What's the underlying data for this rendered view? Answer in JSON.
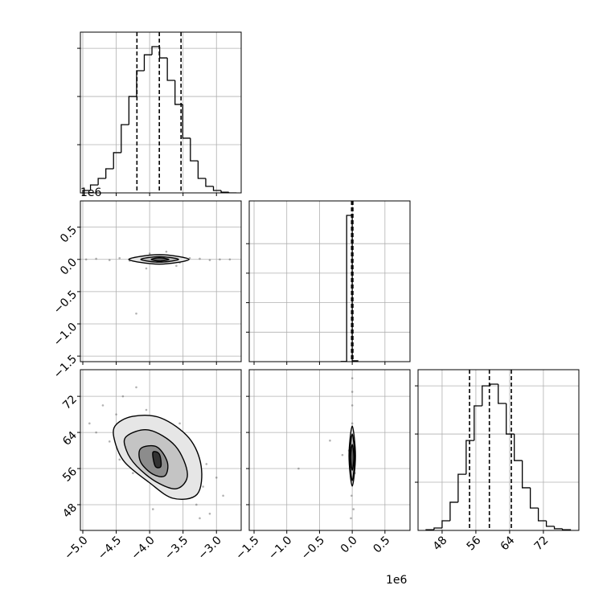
{
  "chart_data": [
    {
      "type": "hist",
      "color": "#000000",
      "bins": [
        -5.0,
        -4.885,
        -4.77,
        -4.655,
        -4.54,
        -4.425,
        -4.31,
        -4.195,
        -4.08,
        -3.965,
        -3.85,
        -3.735,
        -3.62,
        -3.505,
        -3.39,
        -3.275,
        -3.16,
        -3.045,
        -2.93,
        -2.815,
        -2.7
      ],
      "counts": [
        10,
        33,
        60,
        100,
        167,
        283,
        400,
        507,
        573,
        607,
        560,
        467,
        367,
        227,
        133,
        60,
        27,
        10,
        3,
        0
      ],
      "quantiles": [
        -4.19,
        -3.855,
        -3.53
      ],
      "xlim": [
        -5.036,
        -2.63
      ],
      "ylim": [
        0,
        667
      ],
      "xticks": [
        -5,
        -4.5,
        -4,
        -3.5,
        -3
      ],
      "yticks": [
        200,
        400,
        600
      ],
      "grid": true
    },
    {
      "type": "contour",
      "color": "#000000",
      "x": [
        -4.95,
        -4.8,
        -4.6,
        -4.45,
        -4.3,
        -4.15,
        -4.0,
        -3.85,
        -3.7,
        -3.55,
        -3.4,
        -3.25,
        -3.1,
        -2.95,
        -2.8,
        -4.2,
        -4.05,
        -3.75,
        -3.6
      ],
      "y": [
        0,
        0.01,
        -0.01,
        0.02,
        -0.02,
        0.03,
        0.09,
        -0.03,
        0.04,
        -0.05,
        0.02,
        0.01,
        -0.01,
        0,
        0,
        -0.84,
        -0.14,
        0.12,
        -0.1
      ],
      "contours": [
        {
          "fill": "#e6e6e6",
          "x": [
            -4.313,
            -3.855,
            -3.41,
            -3.855
          ],
          "y": [
            0,
            0.074,
            0,
            -0.074
          ]
        },
        {
          "fill": "#bbbbbb",
          "x": [
            -4.133,
            -3.855,
            -3.566,
            -3.855
          ],
          "y": [
            0,
            0.043,
            0,
            -0.043
          ]
        },
        {
          "fill": "#666666",
          "x": [
            -3.976,
            -3.855,
            -3.711,
            -3.855
          ],
          "y": [
            0,
            0.025,
            0,
            -0.025
          ]
        }
      ],
      "xlim": [
        -5.036,
        -2.63
      ],
      "ylim": [
        -1.586,
        0.907
      ],
      "xticks": [
        -5,
        -4.5,
        -4,
        -3.5,
        -3
      ],
      "yticks": [
        0.5,
        {
          "value": 0,
          "label": "0.0"
        },
        {
          "value": -0.5,
          "label": "−0.5"
        },
        {
          "value": -1,
          "label": "−1.0"
        },
        {
          "value": -1.5,
          "label": "−1.5"
        }
      ],
      "y_offset_label": "1e6",
      "grid": true
    },
    {
      "type": "hist",
      "color": "#000000",
      "bins": [
        -0.17,
        -0.085,
        0.0,
        0.085
      ],
      "counts": [
        5,
        4960,
        30
      ],
      "quantiles": [
        -0.01,
        0.0,
        0.01
      ],
      "xlim": [
        -1.574,
        0.883
      ],
      "ylim": [
        0,
        5450
      ],
      "xticks": [
        -1.5,
        -1,
        -0.5,
        0,
        0.5
      ],
      "yticks": [
        1000,
        2000,
        3000,
        4000
      ],
      "grid": true
    },
    {
      "type": "contour",
      "color": "#000000",
      "x": [
        -4.9,
        -4.7,
        -4.6,
        -4.5,
        -4.4,
        -4.3,
        -4.2,
        -4.1,
        -4.0,
        -3.9,
        -3.8,
        -3.7,
        -3.6,
        -3.5,
        -3.4,
        -3.3,
        -3.2,
        -3.1,
        -3.0,
        -2.9,
        -4.8,
        -4.45,
        -4.05,
        -3.75,
        -3.45,
        -3.15,
        -4.25,
        -3.95,
        -3.55,
        -3.25
      ],
      "y": [
        66,
        70,
        62,
        68,
        72,
        60,
        74,
        64,
        58,
        66,
        62,
        54,
        60,
        50,
        56,
        48,
        52,
        46,
        54,
        50,
        64,
        58,
        69,
        52,
        61,
        57,
        55,
        47,
        66,
        45
      ],
      "contours": [
        {
          "fill": "#e6e6e6",
          "x": [
            -4.518,
            -4.253,
            -3.831,
            -3.41,
            -3.229,
            -3.289,
            -3.651,
            -4.012,
            -4.373,
            -4.518
          ],
          "y": [
            65.42,
            67.56,
            67.2,
            62.76,
            56.53,
            50.31,
            49.42,
            52.98,
            57.42,
            61.87
          ]
        },
        {
          "fill": "#c4c4c4",
          "x": [
            -4.349,
            -4.012,
            -3.614,
            -3.434,
            -3.59,
            -3.892,
            -4.193,
            -4.349
          ],
          "y": [
            63.11,
            64.53,
            60.98,
            54.76,
            51.56,
            52.98,
            56.53,
            60.09
          ]
        },
        {
          "fill": "#8c8c8c",
          "x": [
            -4.133,
            -3.892,
            -3.735,
            -3.771,
            -3.952,
            -4.133
          ],
          "y": [
            60.44,
            60.8,
            57.42,
            54.4,
            54.76,
            57.42
          ]
        },
        {
          "fill": "#333333",
          "x": [
            -3.952,
            -3.855,
            -3.831,
            -3.916
          ],
          "y": [
            59.56,
            59.2,
            56.53,
            56.53
          ]
        }
      ],
      "xlim": [
        -5.036,
        -2.63
      ],
      "ylim": [
        42.3,
        77.9
      ],
      "xticks": [
        {
          "value": -5,
          "label": "−5.0"
        },
        {
          "value": -4.5,
          "label": "−4.5"
        },
        {
          "value": -4,
          "label": "−4.0"
        },
        {
          "value": -3.5,
          "label": "−3.5"
        },
        {
          "value": -3,
          "label": "−3.0"
        }
      ],
      "yticks": [
        72,
        64,
        56,
        48
      ],
      "grid": true
    },
    {
      "type": "contour",
      "color": "#000000",
      "x": [
        0,
        0,
        0,
        0,
        0,
        0,
        0.01,
        -0.01,
        0.02,
        -0.02,
        -0.34,
        -0.82,
        -0.05,
        0.04,
        -0.15
      ],
      "y": [
        76,
        73,
        70,
        66,
        62,
        58,
        54,
        50,
        47,
        45,
        62.2,
        56,
        60,
        55,
        59
      ],
      "contours": [
        {
          "fill": "#e6e6e6",
          "x": [
            0,
            0.049,
            0,
            -0.049
          ],
          "y": [
            65.42,
            58.8,
            52.1,
            58.8
          ]
        },
        {
          "fill": "#bbbbbb",
          "x": [
            0,
            0.037,
            0,
            -0.037
          ],
          "y": [
            63.64,
            58.5,
            53.33,
            58.5
          ]
        },
        {
          "fill": "#555555",
          "x": [
            0,
            0.025,
            0,
            -0.025
          ],
          "y": [
            61.33,
            58.5,
            55.64,
            58.5
          ]
        }
      ],
      "xlim": [
        -1.574,
        0.883
      ],
      "ylim": [
        42.3,
        77.9
      ],
      "xticks": [
        {
          "value": -1.5,
          "label": "−1.5"
        },
        {
          "value": -1,
          "label": "−1.0"
        },
        {
          "value": -0.5,
          "label": "−0.5"
        },
        {
          "value": 0,
          "label": "0.0"
        },
        0.5
      ],
      "yticks": [
        48,
        56,
        64,
        72
      ],
      "x_offset_label": "1e6",
      "grid": true
    },
    {
      "type": "hist",
      "color": "#000000",
      "bins": [
        44.2,
        46.1,
        48.0,
        49.9,
        51.8,
        53.7,
        55.6,
        57.5,
        59.4,
        61.3,
        63.2,
        65.1,
        67.0,
        68.9,
        70.8,
        72.7,
        74.6,
        76.5,
        78.4
      ],
      "counts": [
        3,
        10,
        40,
        117,
        233,
        373,
        517,
        600,
        607,
        527,
        400,
        290,
        177,
        93,
        40,
        17,
        7,
        3
      ],
      "quantiles": [
        54.5,
        59.2,
        64.4
      ],
      "xlim": [
        42.3,
        80.4
      ],
      "ylim": [
        0,
        667
      ],
      "xticks": [
        48,
        56,
        64,
        72
      ],
      "yticks": [
        200,
        400,
        600
      ],
      "grid": true
    }
  ]
}
